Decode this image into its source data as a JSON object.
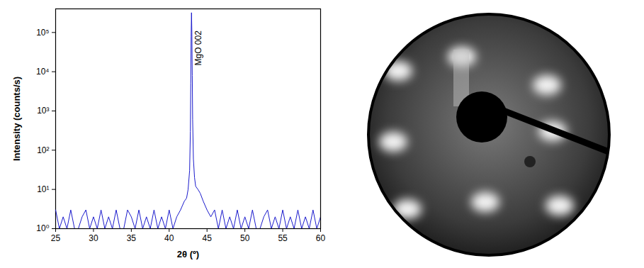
{
  "chart_data": {
    "type": "line",
    "x_label": "2θ (º)",
    "y_label": "Intensity (counts/s)",
    "log": "y",
    "color": "#1a1acc",
    "x": [
      25,
      25.5,
      26,
      26.5,
      27,
      27.5,
      28,
      28.5,
      29,
      29.5,
      30,
      30.5,
      31,
      31.5,
      32,
      32.5,
      33,
      33.5,
      34,
      34.5,
      35,
      35.5,
      36,
      36.5,
      37,
      37.5,
      38,
      38.5,
      39,
      39.5,
      40,
      40.5,
      41,
      41.5,
      42,
      42.3,
      42.5,
      42.7,
      42.8,
      42.85,
      42.9,
      42.95,
      43,
      43.05,
      43.1,
      43.2,
      43.35,
      43.5,
      43.8,
      44.1,
      44.5,
      45,
      45.5,
      46,
      46.5,
      47,
      47.5,
      48,
      48.5,
      49,
      49.5,
      50,
      50.5,
      51,
      51.5,
      52,
      52.5,
      53,
      53.5,
      54,
      54.5,
      55,
      55.5,
      56,
      56.5,
      57,
      57.5,
      58,
      58.5,
      59,
      59.5,
      60
    ],
    "values": [
      3,
      1,
      2,
      1,
      3,
      1,
      1,
      2,
      3,
      1,
      2,
      1,
      3,
      1,
      2,
      1,
      3,
      1,
      1,
      3,
      2,
      1,
      3,
      1,
      2,
      1,
      3,
      1,
      2,
      1,
      3,
      1,
      2,
      3,
      5,
      6,
      10,
      30,
      300,
      5000,
      80000,
      320000,
      100000,
      8000,
      600,
      60,
      20,
      12,
      10,
      8,
      5,
      3,
      2,
      3,
      1,
      3,
      1,
      2,
      1,
      3,
      1,
      2,
      1,
      3,
      1,
      1,
      2,
      3,
      1,
      2,
      1,
      3,
      1,
      2,
      1,
      3,
      1,
      2,
      1,
      3,
      1,
      2
    ],
    "xlim": [
      25,
      60
    ],
    "xticks": [
      25,
      30,
      35,
      40,
      45,
      50,
      55,
      60
    ],
    "ylim": [
      1,
      400000
    ],
    "yticks": [
      {
        "value": 1,
        "label": "10⁰"
      },
      {
        "value": 10,
        "label": "10¹"
      },
      {
        "value": 100,
        "label": "10²"
      },
      {
        "value": 1000,
        "label": "10³"
      },
      {
        "value": 10000,
        "label": "10⁴"
      },
      {
        "value": 100000,
        "label": "10⁵"
      }
    ],
    "annotations": [
      {
        "text": "MgO 002",
        "x": 43.9,
        "y": 40000
      }
    ],
    "grid": false
  }
}
